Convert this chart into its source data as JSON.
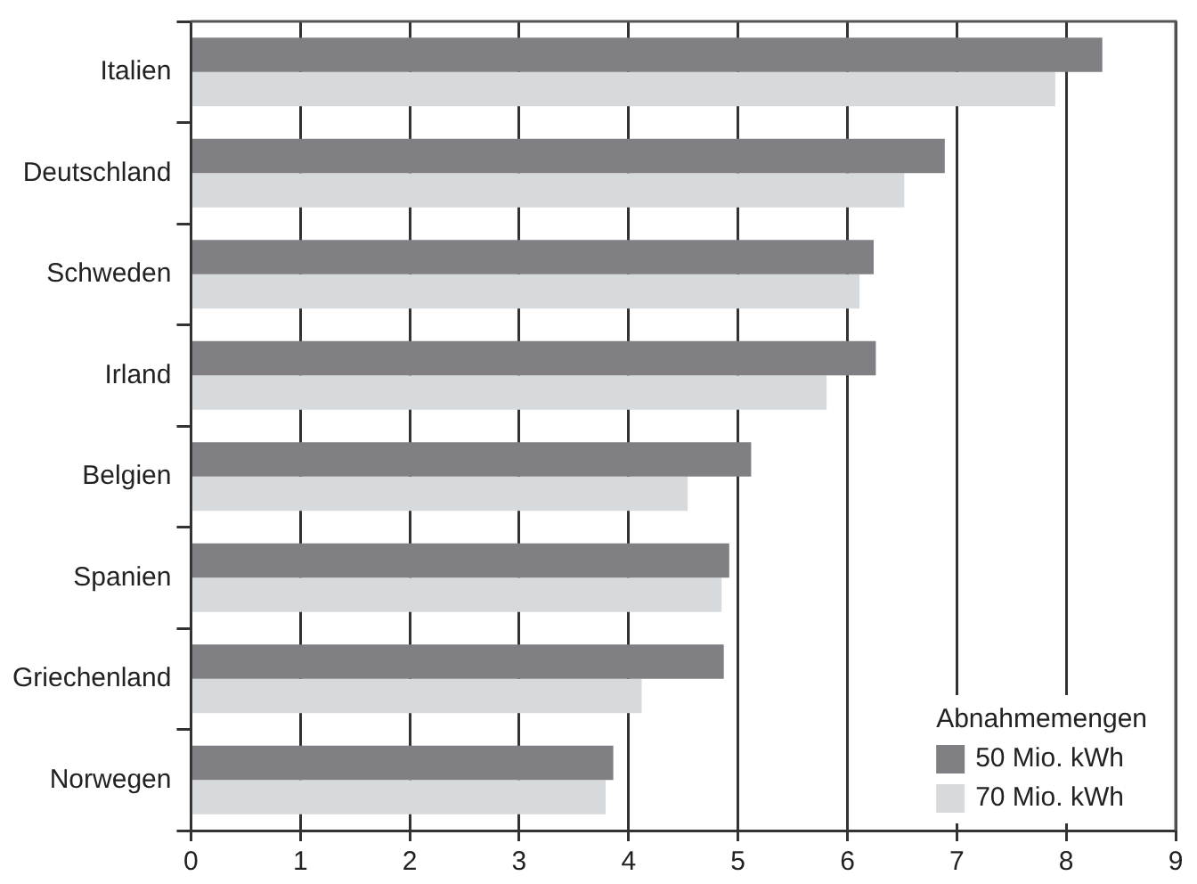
{
  "chart_data": {
    "type": "bar",
    "orientation": "horizontal",
    "legend_title": "Abnahmemengen",
    "categories": [
      "Italien",
      "Deutschland",
      "Schweden",
      "Irland",
      "Belgien",
      "Spanien",
      "Griechenland",
      "Norwegen"
    ],
    "series": [
      {
        "name": "50 Mio. kWh",
        "color": "#807f84",
        "values": [
          8.33,
          6.89,
          6.24,
          6.26,
          5.12,
          4.92,
          4.87,
          3.86
        ]
      },
      {
        "name": "70 Mio. kWh",
        "color": "#d7dadd",
        "values": [
          7.9,
          6.52,
          6.11,
          5.81,
          4.54,
          4.85,
          4.12,
          3.79
        ]
      }
    ],
    "xlim": [
      0,
      9
    ],
    "xticks": [
      0,
      1,
      2,
      3,
      4,
      5,
      6,
      7,
      8,
      9
    ],
    "grid": "x",
    "legend": "bottom right"
  }
}
